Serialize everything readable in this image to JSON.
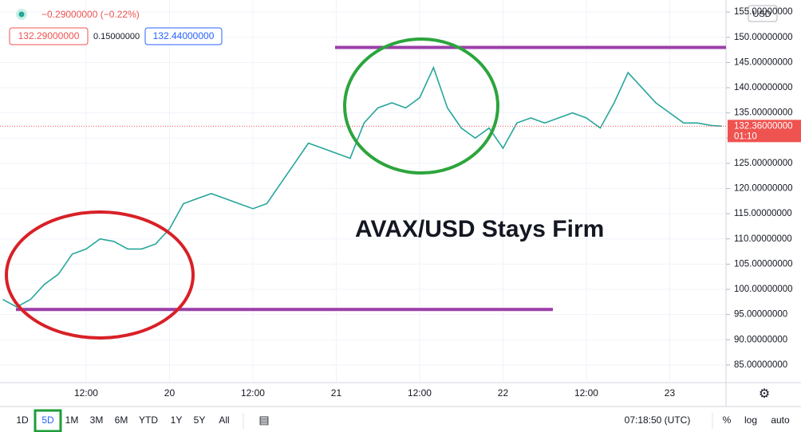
{
  "chart_data": {
    "type": "line",
    "annotation": "AVAX/USD Stays Firm",
    "header": {
      "change": "−0.29000000 (−0.22%)",
      "bid": "132.29000000",
      "spread": "0.15000000",
      "ask": "132.44000000"
    },
    "currency": "USD",
    "price_line": {
      "value": 132.36,
      "label": "132.36000000"
    },
    "countdown": "01:10",
    "levels": [
      148,
      96
    ],
    "x": [
      -24,
      -22,
      -20,
      -18,
      -16,
      -14,
      -12,
      -10,
      -8,
      -6,
      -4,
      -2,
      0,
      2,
      4,
      6,
      8,
      10,
      12,
      14,
      16,
      18,
      20,
      22,
      24,
      26,
      28,
      30,
      32,
      34,
      36,
      38,
      40,
      42,
      44,
      46,
      48,
      50,
      52,
      54,
      56,
      58,
      60,
      62,
      64,
      66,
      68,
      70,
      72,
      74,
      76,
      78,
      79.5
    ],
    "series": [
      {
        "name": "AVAX/USD",
        "color": "#26a69a",
        "values": [
          98,
          96.5,
          98,
          101,
          103,
          107,
          108,
          110,
          109.5,
          108,
          108,
          109,
          112,
          117,
          118,
          119,
          118,
          117,
          116,
          117,
          121,
          125,
          129,
          128,
          127,
          126,
          133,
          136,
          137,
          136,
          138,
          144,
          136,
          132,
          130,
          132,
          128,
          133,
          134,
          133,
          134,
          135,
          134,
          132,
          137,
          143,
          140,
          137,
          135,
          133,
          133,
          132.5,
          132.36
        ]
      }
    ],
    "xlim": [
      -24.4,
      80.1
    ],
    "xticks": [
      {
        "value": -12,
        "label": "12:00"
      },
      {
        "value": 0,
        "label": "20"
      },
      {
        "value": 12,
        "label": "12:00"
      },
      {
        "value": 24,
        "label": "21"
      },
      {
        "value": 36,
        "label": "12:00"
      },
      {
        "value": 48,
        "label": "22"
      },
      {
        "value": 60,
        "label": "12:00"
      },
      {
        "value": 72,
        "label": "23"
      }
    ],
    "ylim": [
      81.5,
      157.4
    ],
    "yticks": [
      {
        "value": 85,
        "label": "85.00000000"
      },
      {
        "value": 90,
        "label": "90.00000000"
      },
      {
        "value": 95,
        "label": "95.00000000"
      },
      {
        "value": 100,
        "label": "100.00000000"
      },
      {
        "value": 105,
        "label": "105.00000000"
      },
      {
        "value": 110,
        "label": "110.00000000"
      },
      {
        "value": 115,
        "label": "115.00000000"
      },
      {
        "value": 120,
        "label": "120.00000000"
      },
      {
        "value": 125,
        "label": "125.00000000"
      },
      {
        "value": 130,
        "label": "130.00000000"
      },
      {
        "value": 135,
        "label": "135.00000000"
      },
      {
        "value": 140,
        "label": "140.00000000"
      },
      {
        "value": 145,
        "label": "145.00000000"
      },
      {
        "value": 150,
        "label": "150.00000000"
      },
      {
        "value": 155,
        "label": "155.00000000"
      }
    ],
    "grid": true,
    "toolbar": {
      "ranges": [
        "1D",
        "5D",
        "1M",
        "3M",
        "6M",
        "YTD",
        "1Y",
        "5Y",
        "All"
      ],
      "time": "07:18:50 (UTC)",
      "options": [
        "%",
        "log",
        "auto"
      ]
    }
  }
}
